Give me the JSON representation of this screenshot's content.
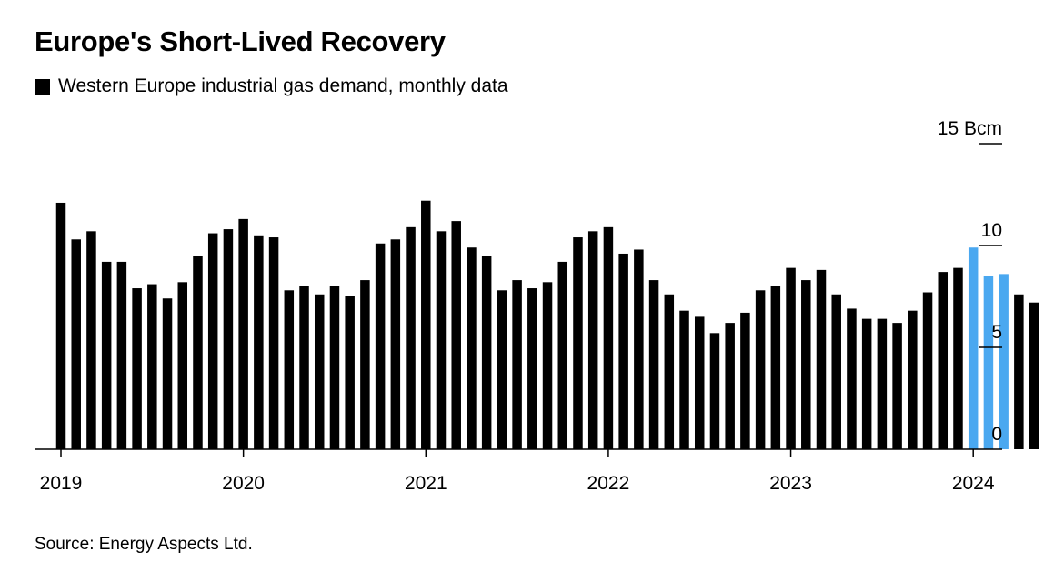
{
  "title": "Europe's Short-Lived Recovery",
  "legend": {
    "label": "Western Europe industrial gas demand, monthly data"
  },
  "source": "Source: Energy Aspects Ltd.",
  "colors": {
    "default": "#000000",
    "highlight": "#4aa8f0"
  },
  "chart_data": {
    "type": "bar",
    "title": "Europe's Short-Lived Recovery",
    "unit": "Bcm",
    "ylim": [
      0,
      15
    ],
    "y_ticks": [
      0,
      5,
      10,
      15
    ],
    "y_tick_labels": [
      "0",
      "5",
      "10",
      "15 Bcm"
    ],
    "x_tick_labels": [
      "2019",
      "2020",
      "2021",
      "2022",
      "2023",
      "2024"
    ],
    "categories": [
      "2019-01",
      "2019-02",
      "2019-03",
      "2019-04",
      "2019-05",
      "2019-06",
      "2019-07",
      "2019-08",
      "2019-09",
      "2019-10",
      "2019-11",
      "2019-12",
      "2020-01",
      "2020-02",
      "2020-03",
      "2020-04",
      "2020-05",
      "2020-06",
      "2020-07",
      "2020-08",
      "2020-09",
      "2020-10",
      "2020-11",
      "2020-12",
      "2021-01",
      "2021-02",
      "2021-03",
      "2021-04",
      "2021-05",
      "2021-06",
      "2021-07",
      "2021-08",
      "2021-09",
      "2021-10",
      "2021-11",
      "2021-12",
      "2022-01",
      "2022-02",
      "2022-03",
      "2022-04",
      "2022-05",
      "2022-06",
      "2022-07",
      "2022-08",
      "2022-09",
      "2022-10",
      "2022-11",
      "2022-12",
      "2023-01",
      "2023-02",
      "2023-03",
      "2023-04",
      "2023-05",
      "2023-06",
      "2023-07",
      "2023-08",
      "2023-09",
      "2023-10",
      "2023-11",
      "2023-12",
      "2024-01",
      "2024-02",
      "2024-03",
      "2024-04",
      "2024-05",
      "2024-06",
      "2024-07",
      "2024-08",
      "2024-09"
    ],
    "series": [
      {
        "values": [
          12.1,
          10.3,
          10.7,
          9.2,
          9.2,
          7.9,
          8.1,
          7.4,
          8.2,
          9.5,
          10.6,
          10.8,
          11.3,
          10.5,
          10.4,
          7.8,
          8.0,
          7.6,
          8.0,
          7.5,
          8.3,
          10.1,
          10.3,
          10.9,
          12.2,
          10.7,
          11.2,
          9.9,
          9.5,
          7.8,
          8.3,
          7.9,
          8.2,
          9.2,
          10.4,
          10.7,
          10.9,
          9.6,
          9.8,
          8.3,
          7.6,
          6.8,
          6.5,
          5.7,
          6.2,
          6.7,
          7.8,
          8.0,
          8.9,
          8.3,
          8.8,
          7.6,
          6.9,
          6.4,
          6.4,
          6.2,
          6.8,
          7.7,
          8.7,
          8.9,
          9.9,
          8.5,
          8.6,
          7.6,
          7.2,
          6.8,
          6.8,
          6.2,
          6.7
        ]
      }
    ],
    "highlight_categories": [
      "2024-01",
      "2024-02",
      "2024-03"
    ],
    "grid": false
  }
}
